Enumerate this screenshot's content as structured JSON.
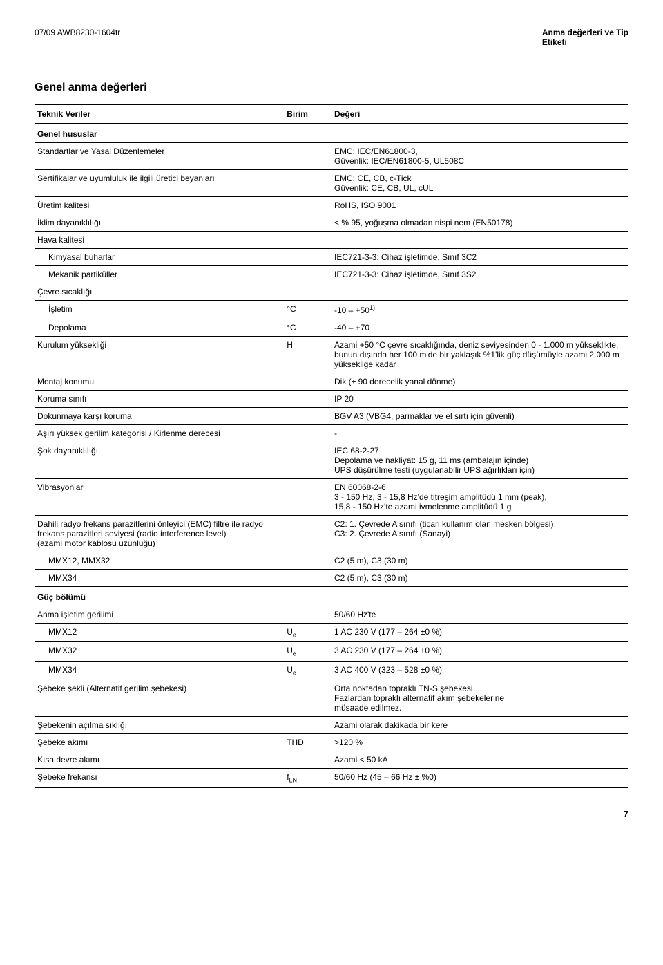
{
  "header": {
    "doc_id": "07/09 AWB8230-1604tr",
    "doc_title_line1": "Anma değerleri ve Tip",
    "doc_title_line2": "Etiketi"
  },
  "heading": "Genel anma değerleri",
  "columns": {
    "param": "Teknik Veriler",
    "unit": "Birim",
    "value": "Değeri"
  },
  "rows": [
    {
      "type": "section",
      "param": "Genel hususlar"
    },
    {
      "param": "Standartlar ve Yasal Düzenlemeler",
      "value": "EMC: IEC/EN61800-3,\nGüvenlik: IEC/EN61800-5, UL508C"
    },
    {
      "param": "Sertifikalar ve uyumluluk ile ilgili üretici beyanları",
      "value": "EMC: CE, CB, c-Tick\nGüvenlik: CE, CB, UL, cUL"
    },
    {
      "param": "Üretim kalitesi",
      "value": "RoHS, ISO 9001"
    },
    {
      "param": "İklim dayanıklılığı",
      "value": "< % 95, yoğuşma olmadan nispi nem (EN50178)"
    },
    {
      "param": "Hava kalitesi"
    },
    {
      "indent": 1,
      "param": "Kimyasal buharlar",
      "value": "IEC721-3-3: Cihaz işletimde, Sınıf 3C2"
    },
    {
      "indent": 1,
      "param": "Mekanik partiküller",
      "value": "IEC721-3-3: Cihaz işletimde, Sınıf 3S2"
    },
    {
      "param": "Çevre sıcaklığı"
    },
    {
      "indent": 1,
      "param": "İşletim",
      "unit": "°C",
      "value_html": "-10 – +50<sup>1)</sup>"
    },
    {
      "indent": 1,
      "param": "Depolama",
      "unit": "°C",
      "value": "-40 – +70"
    },
    {
      "param": "Kurulum yüksekliği",
      "unit": "H",
      "value": "Azami +50 °C çevre sıcaklığında, deniz seviyesinden 0 - 1.000 m yükseklikte, bunun dışında her 100 m'de bir yaklaşık %1'lik güç düşümüyle azami 2.000 m yüksekliğe kadar"
    },
    {
      "param": "Montaj konumu",
      "value": "Dik (± 90 derecelik yanal dönme)"
    },
    {
      "param": "Koruma sınıfı",
      "value": "IP 20"
    },
    {
      "param": "Dokunmaya karşı koruma",
      "value": "BGV A3 (VBG4, parmaklar ve el sırtı için güvenli)"
    },
    {
      "param": "Aşırı yüksek gerilim kategorisi / Kirlenme derecesi",
      "value": "-"
    },
    {
      "param": "Şok dayanıklılığı",
      "value": "IEC 68-2-27\nDepolama ve nakliyat: 15 g, 11 ms (ambalajın içinde)\nUPS düşürülme testi (uygulanabilir UPS ağırlıkları için)"
    },
    {
      "param": "Vibrasyonlar",
      "value": "EN 60068-2-6\n3 - 150 Hz, 3 - 15,8 Hz'de titreşim amplitüdü 1 mm (peak),\n15,8 - 150 Hz'te azami ivmelenme amplitüdü 1 g"
    },
    {
      "param": "Dahili radyo frekans parazitlerini önleyici (EMC) filtre ile radyo frekans parazitleri seviyesi (radio interference level)\n(azami motor kablosu uzunluğu)",
      "value": "C2: 1. Çevrede A sınıfı (ticari kullanım olan mesken bölgesi)\nC3: 2. Çevrede A sınıfı (Sanayi)"
    },
    {
      "indent": 1,
      "param": "MMX12, MMX32",
      "value": "C2 (5 m), C3 (30 m)"
    },
    {
      "indent": 1,
      "param": "MMX34",
      "value": "C2 (5 m), C3 (30 m)"
    },
    {
      "type": "section",
      "param": "Güç bölümü"
    },
    {
      "param": "Anma işletim gerilimi",
      "value": "50/60 Hz'te"
    },
    {
      "indent": 1,
      "param": "MMX12",
      "unit_html": "U<sub>e</sub>",
      "value": "1 AC 230 V (177 – 264 ±0 %)"
    },
    {
      "indent": 1,
      "param": "MMX32",
      "unit_html": "U<sub>e</sub>",
      "value": "3 AC 230 V (177 – 264 ±0 %)"
    },
    {
      "indent": 1,
      "param": "MMX34",
      "unit_html": "U<sub>e</sub>",
      "value": "3 AC 400 V (323 – 528 ±0 %)"
    },
    {
      "param": "Şebeke şekli (Alternatif gerilim şebekesi)",
      "value": "Orta noktadan topraklı TN-S şebekesi\nFazlardan topraklı alternatif akım şebekelerine\nmüsaade edilmez."
    },
    {
      "param": "Şebekenin açılma sıklığı",
      "value": "Azami olarak dakikada bir kere"
    },
    {
      "param": "Şebeke akımı",
      "unit": "THD",
      "value": ">120 %"
    },
    {
      "param": "Kısa devre akımı",
      "value": "Azami < 50 kA"
    },
    {
      "param": "Şebeke frekansı",
      "unit_html": "f<sub>LN</sub>",
      "value": "50/60 Hz (45 – 66 Hz ± %0)"
    }
  ],
  "page_number": "7"
}
